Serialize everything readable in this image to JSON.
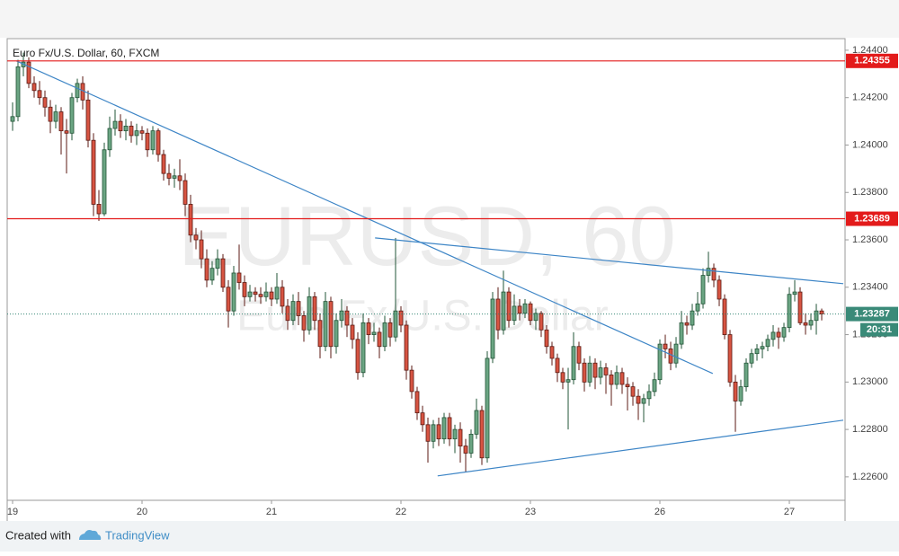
{
  "chart_data": {
    "type": "candlestick",
    "title": "Euro Fx/U.S. Dollar, 60, FXCM",
    "watermark": "EURUSD, 60",
    "watermark_subtitle": "Euro Fx/U.S. Dollar",
    "colors": {
      "up": "#6ba583",
      "up_border": "#225437",
      "down": "#d75442",
      "down_border": "#5b1a13",
      "trendline": "#3d85c6"
    },
    "xlim": [
      -1,
      154.33
    ],
    "ylim": [
      1.22501,
      1.24449
    ],
    "yticks": [
      {
        "value": 1.226,
        "label": "1.22600"
      },
      {
        "value": 1.228,
        "label": "1.22800"
      },
      {
        "value": 1.23,
        "label": "1.23000"
      },
      {
        "value": 1.232,
        "label": "1.23200"
      },
      {
        "value": 1.234,
        "label": "1.23400"
      },
      {
        "value": 1.236,
        "label": "1.23600"
      },
      {
        "value": 1.238,
        "label": "1.23800"
      },
      {
        "value": 1.24,
        "label": "1.24000"
      },
      {
        "value": 1.242,
        "label": "1.24200"
      },
      {
        "value": 1.244,
        "label": "1.24400"
      }
    ],
    "xticks": [
      {
        "value": 0,
        "label": "19"
      },
      {
        "value": 24,
        "label": "20"
      },
      {
        "value": 48,
        "label": "21"
      },
      {
        "value": 72,
        "label": "22"
      },
      {
        "value": 96,
        "label": "23"
      },
      {
        "value": 120,
        "label": "26"
      },
      {
        "value": 144,
        "label": "27"
      }
    ],
    "hlines": [
      {
        "value": 1.24355,
        "label": "1.24355",
        "color": "#e31b1b"
      },
      {
        "value": 1.23689,
        "label": "1.23689",
        "color": "#e31b1b"
      }
    ],
    "last_price": {
      "value": 1.23287,
      "label": "1.23287",
      "color": "#3a8a78"
    },
    "countdown": "20:31",
    "trendlines": [
      {
        "start": [
          0.7,
          1.24355
        ],
        "end": [
          129.8,
          1.23036
        ]
      },
      {
        "start": [
          67.2,
          1.23608
        ],
        "end": [
          154,
          1.23415
        ]
      },
      {
        "start": [
          78.8,
          1.22604
        ],
        "end": [
          154,
          1.22839
        ]
      }
    ],
    "candles": [
      [
        1.241,
        1.2418,
        1.2406,
        1.2412
      ],
      [
        1.2412,
        1.2436,
        1.241,
        1.2433
      ],
      [
        1.2433,
        1.2439,
        1.2429,
        1.2435
      ],
      [
        1.2435,
        1.2437,
        1.2424,
        1.2426
      ],
      [
        1.2426,
        1.2429,
        1.242,
        1.2423
      ],
      [
        1.2423,
        1.2427,
        1.2417,
        1.242
      ],
      [
        1.242,
        1.2423,
        1.2412,
        1.2416
      ],
      [
        1.2416,
        1.2419,
        1.2405,
        1.241
      ],
      [
        1.241,
        1.2417,
        1.2407,
        1.2414
      ],
      [
        1.2414,
        1.2416,
        1.2396,
        1.2406
      ],
      [
        1.2406,
        1.2411,
        1.2388,
        1.2405
      ],
      [
        1.2405,
        1.2422,
        1.2402,
        1.242
      ],
      [
        1.242,
        1.2428,
        1.2418,
        1.2426
      ],
      [
        1.2426,
        1.2429,
        1.2415,
        1.2419
      ],
      [
        1.2419,
        1.2423,
        1.2399,
        1.2402
      ],
      [
        1.2402,
        1.2405,
        1.237,
        1.2375
      ],
      [
        1.2375,
        1.2381,
        1.2368,
        1.2371
      ],
      [
        1.2371,
        1.2401,
        1.237,
        1.2398
      ],
      [
        1.2398,
        1.2412,
        1.2395,
        1.2407
      ],
      [
        1.2407,
        1.2415,
        1.2404,
        1.241
      ],
      [
        1.241,
        1.2413,
        1.2403,
        1.2406
      ],
      [
        1.2406,
        1.2411,
        1.2402,
        1.2408
      ],
      [
        1.2408,
        1.241,
        1.2401,
        1.2404
      ],
      [
        1.2404,
        1.2409,
        1.24,
        1.2406
      ],
      [
        1.2406,
        1.2408,
        1.2402,
        1.2405
      ],
      [
        1.2405,
        1.2407,
        1.2395,
        1.2398
      ],
      [
        1.2398,
        1.2408,
        1.2396,
        1.2406
      ],
      [
        1.2406,
        1.2407,
        1.2393,
        1.2396
      ],
      [
        1.2396,
        1.2398,
        1.2385,
        1.2388
      ],
      [
        1.2388,
        1.2392,
        1.2383,
        1.2386
      ],
      [
        1.2386,
        1.239,
        1.2382,
        1.2387
      ],
      [
        1.2387,
        1.2394,
        1.2381,
        1.2385
      ],
      [
        1.2385,
        1.2388,
        1.237,
        1.2375
      ],
      [
        1.2375,
        1.2379,
        1.2359,
        1.2362
      ],
      [
        1.2362,
        1.2365,
        1.2356,
        1.236
      ],
      [
        1.236,
        1.2364,
        1.2348,
        1.2352
      ],
      [
        1.2352,
        1.2356,
        1.234,
        1.2343
      ],
      [
        1.2343,
        1.2351,
        1.2341,
        1.2348
      ],
      [
        1.2348,
        1.2356,
        1.2345,
        1.2352
      ],
      [
        1.2352,
        1.2354,
        1.2338,
        1.234
      ],
      [
        1.234,
        1.2343,
        1.2323,
        1.233
      ],
      [
        1.233,
        1.2349,
        1.2328,
        1.2346
      ],
      [
        1.2346,
        1.2358,
        1.2339,
        1.2342
      ],
      [
        1.2342,
        1.2345,
        1.2332,
        1.2336
      ],
      [
        1.2336,
        1.2341,
        1.2334,
        1.2338
      ],
      [
        1.2338,
        1.234,
        1.2334,
        1.2337
      ],
      [
        1.2337,
        1.234,
        1.2333,
        1.2336
      ],
      [
        1.2336,
        1.2342,
        1.2334,
        1.2338
      ],
      [
        1.2338,
        1.234,
        1.2332,
        1.2335
      ],
      [
        1.2335,
        1.2346,
        1.2333,
        1.234
      ],
      [
        1.234,
        1.2343,
        1.2329,
        1.2332
      ],
      [
        1.2332,
        1.2335,
        1.2322,
        1.2326
      ],
      [
        1.2326,
        1.2337,
        1.2324,
        1.2334
      ],
      [
        1.2334,
        1.2338,
        1.2324,
        1.2328
      ],
      [
        1.2328,
        1.233,
        1.2317,
        1.2322
      ],
      [
        1.2322,
        1.234,
        1.232,
        1.2336
      ],
      [
        1.2336,
        1.2338,
        1.2322,
        1.2326
      ],
      [
        1.2326,
        1.2329,
        1.231,
        1.2315
      ],
      [
        1.2315,
        1.2338,
        1.2313,
        1.2334
      ],
      [
        1.2334,
        1.2336,
        1.231,
        1.2315
      ],
      [
        1.2315,
        1.2329,
        1.2312,
        1.2326
      ],
      [
        1.2326,
        1.2335,
        1.2323,
        1.233
      ],
      [
        1.233,
        1.2332,
        1.2319,
        1.2324
      ],
      [
        1.2324,
        1.2327,
        1.2314,
        1.2318
      ],
      [
        1.2318,
        1.2321,
        1.2301,
        1.2304
      ],
      [
        1.2304,
        1.2329,
        1.2302,
        1.2325
      ],
      [
        1.2325,
        1.2327,
        1.2316,
        1.232
      ],
      [
        1.232,
        1.2325,
        1.2317,
        1.2321
      ],
      [
        1.2321,
        1.2323,
        1.231,
        1.2315
      ],
      [
        1.2315,
        1.2328,
        1.2313,
        1.2325
      ],
      [
        1.2325,
        1.2327,
        1.2315,
        1.2319
      ],
      [
        1.2319,
        1.23608,
        1.2317,
        1.233
      ],
      [
        1.233,
        1.2332,
        1.2321,
        1.2324
      ],
      [
        1.2324,
        1.2326,
        1.2301,
        1.2305
      ],
      [
        1.2305,
        1.2307,
        1.2293,
        1.2296
      ],
      [
        1.2296,
        1.2298,
        1.2284,
        1.2287
      ],
      [
        1.2287,
        1.229,
        1.2279,
        1.2282
      ],
      [
        1.2282,
        1.2285,
        1.2266,
        1.2275
      ],
      [
        1.2275,
        1.2284,
        1.2272,
        1.2282
      ],
      [
        1.2282,
        1.2285,
        1.2273,
        1.2276
      ],
      [
        1.2276,
        1.2287,
        1.2274,
        1.2285
      ],
      [
        1.2285,
        1.2287,
        1.2273,
        1.2276
      ],
      [
        1.2276,
        1.2282,
        1.227,
        1.228
      ],
      [
        1.228,
        1.2283,
        1.2266,
        1.2273
      ],
      [
        1.2273,
        1.2276,
        1.2262,
        1.227
      ],
      [
        1.227,
        1.228,
        1.2268,
        1.2278
      ],
      [
        1.2278,
        1.2293,
        1.2276,
        1.2288
      ],
      [
        1.2288,
        1.229,
        1.2265,
        1.2268
      ],
      [
        1.2268,
        1.2313,
        1.2266,
        1.231
      ],
      [
        1.231,
        1.2338,
        1.2308,
        1.2335
      ],
      [
        1.2335,
        1.234,
        1.2318,
        1.2322
      ],
      [
        1.2322,
        1.2347,
        1.232,
        1.2338
      ],
      [
        1.2338,
        1.234,
        1.2323,
        1.2326
      ],
      [
        1.2326,
        1.2337,
        1.2324,
        1.2332
      ],
      [
        1.2332,
        1.2335,
        1.2326,
        1.2329
      ],
      [
        1.2329,
        1.2335,
        1.2327,
        1.2333
      ],
      [
        1.2333,
        1.2334,
        1.2324,
        1.2326
      ],
      [
        1.2326,
        1.2331,
        1.2322,
        1.2329
      ],
      [
        1.2329,
        1.233,
        1.2319,
        1.2322
      ],
      [
        1.2322,
        1.2324,
        1.2312,
        1.2315
      ],
      [
        1.2315,
        1.2317,
        1.2307,
        1.231
      ],
      [
        1.231,
        1.2312,
        1.23,
        1.2304
      ],
      [
        1.2304,
        1.2306,
        1.2297,
        1.23
      ],
      [
        1.23,
        1.2306,
        1.228,
        1.2301
      ],
      [
        1.2301,
        1.2321,
        1.2299,
        1.2315
      ],
      [
        1.2315,
        1.2317,
        1.2305,
        1.2308
      ],
      [
        1.2308,
        1.231,
        1.2296,
        1.23
      ],
      [
        1.23,
        1.2311,
        1.2298,
        1.2308
      ],
      [
        1.2308,
        1.231,
        1.2297,
        1.2302
      ],
      [
        1.2302,
        1.2309,
        1.2299,
        1.2306
      ],
      [
        1.2306,
        1.2308,
        1.2295,
        1.2303
      ],
      [
        1.2303,
        1.2305,
        1.229,
        1.2299
      ],
      [
        1.2299,
        1.2307,
        1.2297,
        1.2304
      ],
      [
        1.2304,
        1.2306,
        1.2295,
        1.2299
      ],
      [
        1.2299,
        1.2302,
        1.2288,
        1.2298
      ],
      [
        1.2298,
        1.23,
        1.229,
        1.2294
      ],
      [
        1.2294,
        1.2297,
        1.2284,
        1.2291
      ],
      [
        1.2291,
        1.2295,
        1.2283,
        1.2293
      ],
      [
        1.2293,
        1.2299,
        1.229,
        1.2296
      ],
      [
        1.2296,
        1.2304,
        1.2294,
        1.2301
      ],
      [
        1.2301,
        1.2318,
        1.2299,
        1.2316
      ],
      [
        1.2316,
        1.232,
        1.231,
        1.2314
      ],
      [
        1.2314,
        1.2317,
        1.2305,
        1.2308
      ],
      [
        1.2308,
        1.2319,
        1.2306,
        1.2316
      ],
      [
        1.2316,
        1.233,
        1.2314,
        1.2325
      ],
      [
        1.2325,
        1.2328,
        1.232,
        1.2324
      ],
      [
        1.2324,
        1.2333,
        1.2322,
        1.233
      ],
      [
        1.233,
        1.2338,
        1.2328,
        1.2333
      ],
      [
        1.2333,
        1.2348,
        1.2331,
        1.2345
      ],
      [
        1.2345,
        1.2355,
        1.2342,
        1.2348
      ],
      [
        1.2348,
        1.235,
        1.234,
        1.2343
      ],
      [
        1.2343,
        1.2345,
        1.2332,
        1.2335
      ],
      [
        1.2335,
        1.2337,
        1.2318,
        1.232
      ],
      [
        1.232,
        1.2322,
        1.2298,
        1.23
      ],
      [
        1.23,
        1.2303,
        1.2279,
        1.2292
      ],
      [
        1.2292,
        1.2301,
        1.229,
        1.2298
      ],
      [
        1.2298,
        1.231,
        1.2296,
        1.2308
      ],
      [
        1.2308,
        1.2314,
        1.2306,
        1.2312
      ],
      [
        1.2312,
        1.2316,
        1.2309,
        1.2314
      ],
      [
        1.2314,
        1.2317,
        1.231,
        1.2315
      ],
      [
        1.2315,
        1.232,
        1.2313,
        1.2318
      ],
      [
        1.2318,
        1.2324,
        1.2315,
        1.2321
      ],
      [
        1.2321,
        1.2323,
        1.2314,
        1.2319
      ],
      [
        1.2319,
        1.2325,
        1.2317,
        1.2323
      ],
      [
        1.2323,
        1.234,
        1.2321,
        1.2337
      ],
      [
        1.2337,
        1.2343,
        1.2334,
        1.2338
      ],
      [
        1.2338,
        1.234,
        1.2324,
        1.2325
      ],
      [
        1.2325,
        1.2329,
        1.232,
        1.2324
      ],
      [
        1.2324,
        1.2329,
        1.2322,
        1.2326
      ],
      [
        1.2326,
        1.2333,
        1.232,
        1.233
      ],
      [
        1.233,
        1.2331,
        1.2326,
        1.23287
      ]
    ]
  },
  "footer": {
    "prefix": "Created with",
    "brand": "TradingView"
  }
}
